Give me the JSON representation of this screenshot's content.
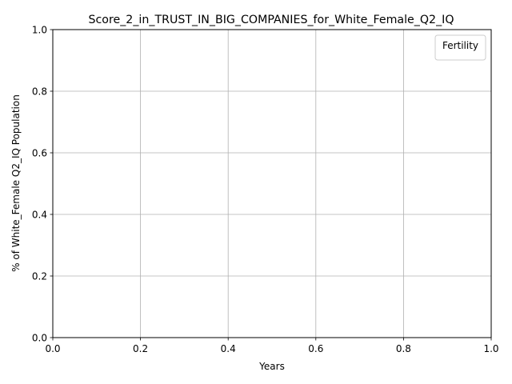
{
  "chart_data": {
    "type": "line",
    "title": "Score_2_in_TRUST_IN_BIG_COMPANIES_for_White_Female_Q2_IQ",
    "xlabel": "Years",
    "ylabel": "% of White_Female Q2_IQ Population",
    "xlim": [
      0.0,
      1.0
    ],
    "ylim": [
      0.0,
      1.0
    ],
    "x_ticks": [
      "0.0",
      "0.2",
      "0.4",
      "0.6",
      "0.8",
      "1.0"
    ],
    "y_ticks": [
      "0.0",
      "0.2",
      "0.4",
      "0.6",
      "0.8",
      "1.0"
    ],
    "x_tick_values": [
      0.0,
      0.2,
      0.4,
      0.6,
      0.8,
      1.0
    ],
    "y_tick_values": [
      0.0,
      0.2,
      0.4,
      0.6,
      0.8,
      1.0
    ],
    "grid": true,
    "legend": {
      "title": "Fertility",
      "placement": "top-right",
      "entries": []
    },
    "series": [],
    "colors": {
      "grid": "#b0b0b0",
      "axis": "#000000",
      "legend_border": "#cccccc"
    }
  }
}
